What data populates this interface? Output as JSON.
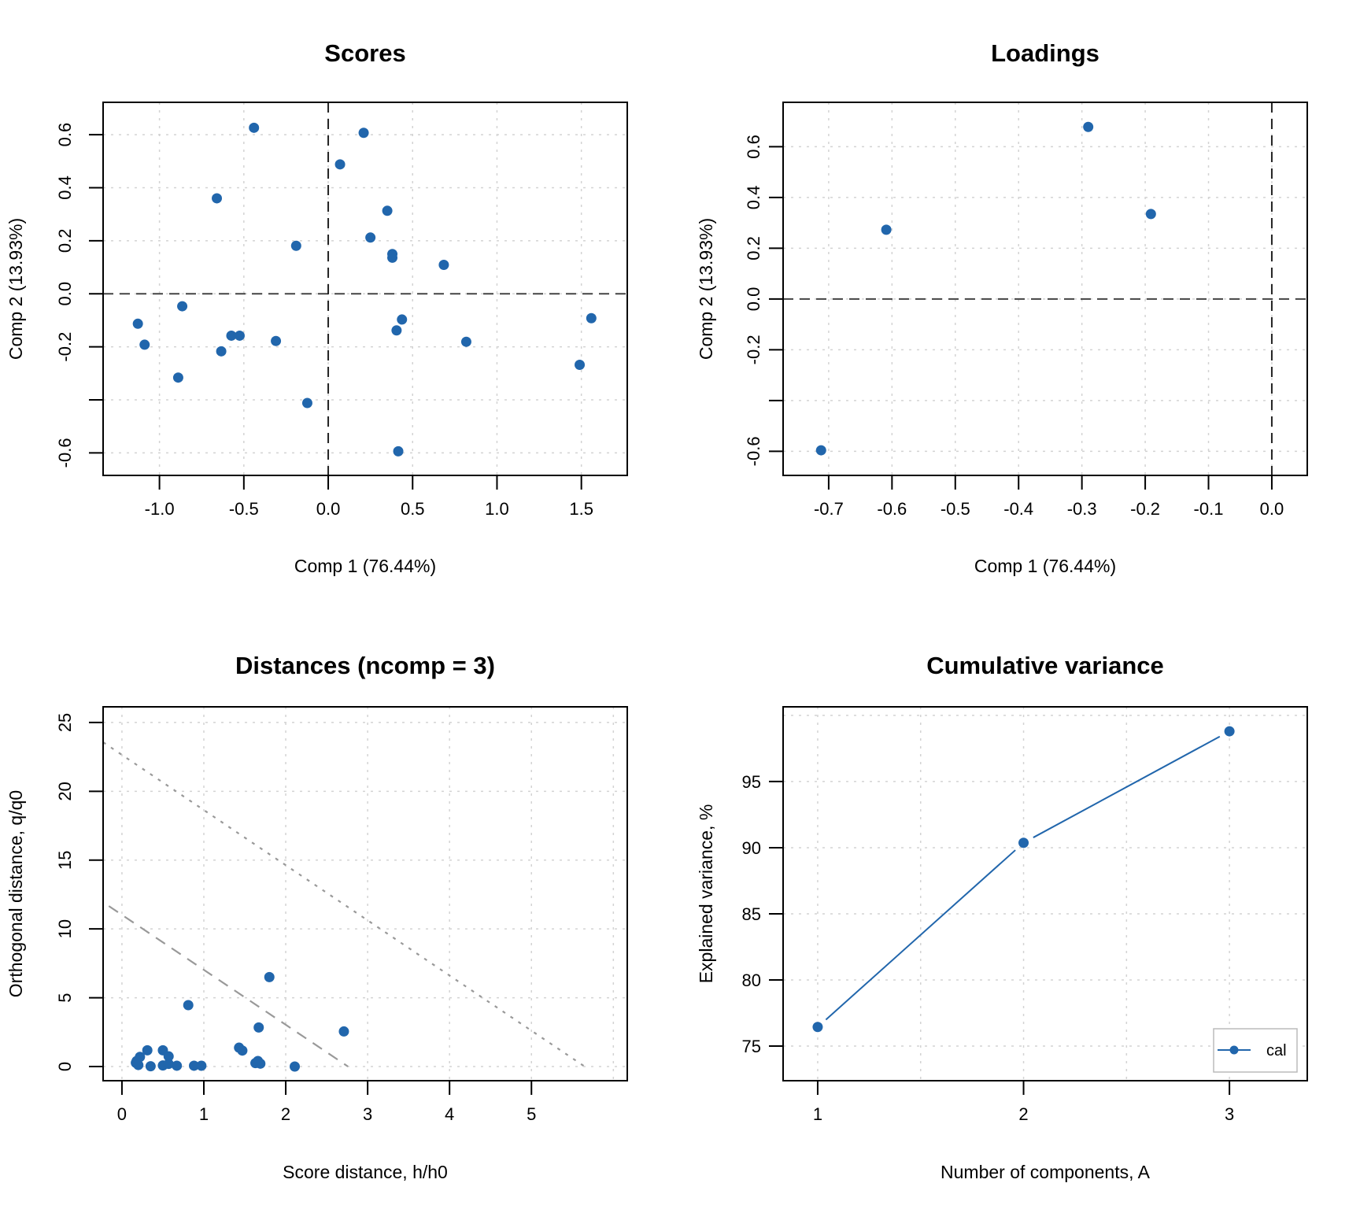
{
  "point_color": "#2166ac",
  "chart_data": [
    {
      "id": "scores",
      "type": "scatter",
      "title": "Scores",
      "xlabel": "Comp 1 (76.44%)",
      "ylabel": "Comp 2 (13.93%)",
      "xlim": [
        -1.334,
        1.772
      ],
      "ylim": [
        -0.685,
        0.722
      ],
      "xticks": [
        -1.0,
        -0.5,
        0.0,
        0.5,
        1.0,
        1.5
      ],
      "xtick_labels": [
        "-1.0",
        "-0.5",
        "0.0",
        "0.5",
        "1.0",
        "1.5"
      ],
      "yticks": [
        -0.6,
        -0.4,
        -0.2,
        0.0,
        0.2,
        0.4,
        0.6
      ],
      "ytick_labels": [
        "-0.6",
        "",
        "-0.2",
        "0.0",
        "0.2",
        "0.4",
        "0.6"
      ],
      "grid": true,
      "reference_lines": {
        "x": 0,
        "y": 0
      },
      "points": [
        [
          -0.44,
          0.626
        ],
        [
          0.21,
          0.607
        ],
        [
          0.07,
          0.488
        ],
        [
          -0.66,
          0.36
        ],
        [
          0.35,
          0.313
        ],
        [
          0.25,
          0.212
        ],
        [
          -0.19,
          0.181
        ],
        [
          0.38,
          0.15
        ],
        [
          0.38,
          0.136
        ],
        [
          0.685,
          0.109
        ],
        [
          -0.865,
          -0.047
        ],
        [
          -1.128,
          -0.113
        ],
        [
          0.437,
          -0.097
        ],
        [
          1.559,
          -0.092
        ],
        [
          0.405,
          -0.138
        ],
        [
          -0.574,
          -0.158
        ],
        [
          -0.525,
          -0.158
        ],
        [
          -0.31,
          -0.178
        ],
        [
          0.818,
          -0.181
        ],
        [
          -1.088,
          -0.192
        ],
        [
          -0.634,
          -0.217
        ],
        [
          1.49,
          -0.268
        ],
        [
          -0.889,
          -0.316
        ],
        [
          -0.124,
          -0.412
        ],
        [
          0.415,
          -0.594
        ]
      ]
    },
    {
      "id": "loadings",
      "type": "scatter",
      "title": "Loadings",
      "xlabel": "Comp 1 (76.44%)",
      "ylabel": "Comp 2 (13.93%)",
      "xlim": [
        -0.772,
        0.056
      ],
      "ylim": [
        -0.695,
        0.775
      ],
      "xticks": [
        -0.7,
        -0.6,
        -0.5,
        -0.4,
        -0.3,
        -0.2,
        -0.1,
        0.0
      ],
      "xtick_labels": [
        "-0.7",
        "-0.6",
        "-0.5",
        "-0.4",
        "-0.3",
        "-0.2",
        "-0.1",
        "0.0"
      ],
      "yticks": [
        -0.6,
        -0.4,
        -0.2,
        0.0,
        0.2,
        0.4,
        0.6
      ],
      "ytick_labels": [
        "-0.6",
        "",
        "-0.2",
        "0.0",
        "0.2",
        "0.4",
        "0.6"
      ],
      "grid": true,
      "reference_lines": {
        "x": 0,
        "y": 0
      },
      "points": [
        [
          -0.712,
          -0.596
        ],
        [
          -0.609,
          0.273
        ],
        [
          -0.29,
          0.678
        ],
        [
          -0.191,
          0.335
        ]
      ]
    },
    {
      "id": "distances",
      "type": "scatter",
      "title": "Distances (ncomp = 3)",
      "xlabel": "Score distance, h/h0",
      "ylabel": "Orthogonal distance, q/q0",
      "xlim": [
        -0.23,
        6.17
      ],
      "ylim": [
        -1.03,
        26.14
      ],
      "xticks": [
        0,
        1,
        2,
        3,
        4,
        5,
        6
      ],
      "xtick_labels": [
        "0",
        "1",
        "2",
        "3",
        "4",
        "5",
        ""
      ],
      "yticks": [
        0,
        5,
        10,
        15,
        20,
        25
      ],
      "ytick_labels": [
        "0",
        "5",
        "10",
        "15",
        "20",
        "25"
      ],
      "grid": true,
      "limit_lines": [
        {
          "name": "extreme-limit",
          "style": "dashed",
          "from": [
            -0.16,
            11.66
          ],
          "to": [
            2.76,
            0
          ]
        },
        {
          "name": "outlier-limit",
          "style": "dotted",
          "from": [
            -0.23,
            23.57
          ],
          "to": [
            5.65,
            0
          ]
        }
      ],
      "points": [
        [
          1.8,
          6.5
        ],
        [
          0.81,
          4.46
        ],
        [
          1.67,
          2.84
        ],
        [
          2.71,
          2.55
        ],
        [
          1.43,
          1.37
        ],
        [
          1.47,
          1.16
        ],
        [
          0.31,
          1.18
        ],
        [
          0.5,
          1.18
        ],
        [
          0.22,
          0.7
        ],
        [
          0.57,
          0.74
        ],
        [
          0.17,
          0.27
        ],
        [
          0.2,
          0.11
        ],
        [
          0.18,
          0.4
        ],
        [
          0.35,
          0.02
        ],
        [
          0.5,
          0.08
        ],
        [
          0.57,
          0.19
        ],
        [
          0.67,
          0.06
        ],
        [
          0.88,
          0.06
        ],
        [
          0.97,
          0.06
        ],
        [
          1.63,
          0.25
        ],
        [
          1.69,
          0.21
        ],
        [
          1.66,
          0.4
        ],
        [
          2.11,
          0.0
        ]
      ]
    },
    {
      "id": "cumvar",
      "type": "line",
      "title": "Cumulative variance",
      "xlabel": "Number of components, A",
      "ylabel": "Explained variance, %",
      "xlim": [
        0.832,
        3.378
      ],
      "ylim": [
        72.38,
        100.65
      ],
      "xticks": [
        1,
        1.5,
        2,
        2.5,
        3
      ],
      "xtick_labels": [
        "1",
        "",
        "2",
        "",
        "3"
      ],
      "yticks": [
        75,
        80,
        85,
        90,
        95,
        100
      ],
      "ytick_labels": [
        "75",
        "80",
        "85",
        "90",
        "95",
        ""
      ],
      "grid": true,
      "legend": {
        "position": "bottom-right",
        "entries": [
          "cal"
        ]
      },
      "series": [
        {
          "name": "cal",
          "x": [
            1,
            2,
            3
          ],
          "values": [
            76.44,
            90.37,
            98.8
          ]
        }
      ]
    }
  ]
}
